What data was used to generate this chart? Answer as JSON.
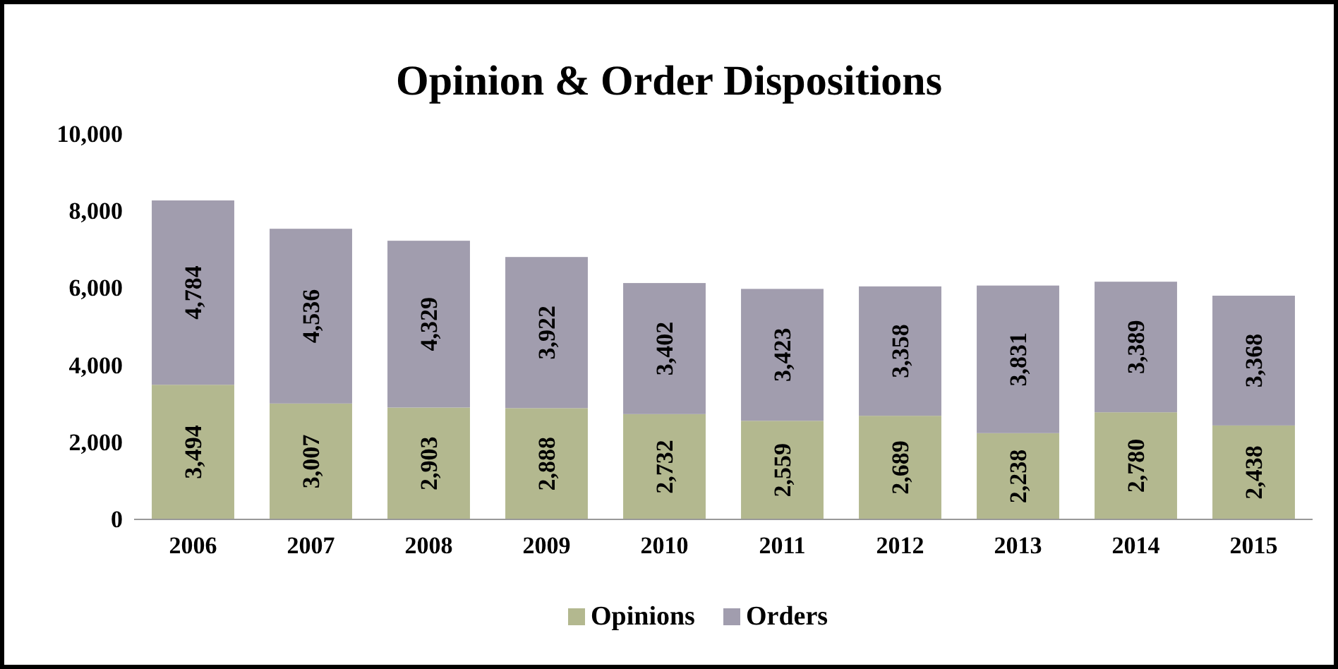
{
  "chart_data": {
    "type": "bar",
    "title": "Opinion & Order Dispositions",
    "categories": [
      "2006",
      "2007",
      "2008",
      "2009",
      "2010",
      "2011",
      "2012",
      "2013",
      "2014",
      "2015"
    ],
    "series": [
      {
        "name": "Opinions",
        "color": "#b3b88f",
        "values": [
          3494,
          3007,
          2903,
          2888,
          2732,
          2559,
          2689,
          2238,
          2780,
          2438
        ],
        "value_labels": [
          "3,494",
          "3,007",
          "2,903",
          "2,888",
          "2,732",
          "2,559",
          "2,689",
          "2,238",
          "2,780",
          "2,438"
        ]
      },
      {
        "name": "Orders",
        "color": "#a19dae",
        "values": [
          4784,
          4536,
          4329,
          3922,
          3402,
          3423,
          3358,
          3831,
          3389,
          3368
        ],
        "value_labels": [
          "4,784",
          "4,536",
          "4,329",
          "3,922",
          "3,402",
          "3,423",
          "3,358",
          "3,831",
          "3,389",
          "3,368"
        ]
      }
    ],
    "stacked": true,
    "ylim": [
      0,
      10000
    ],
    "yticks": [
      {
        "value": 0,
        "label": "0"
      },
      {
        "value": 2000,
        "label": "2,000"
      },
      {
        "value": 4000,
        "label": "4,000"
      },
      {
        "value": 6000,
        "label": "6,000"
      },
      {
        "value": 8000,
        "label": "8,000"
      },
      {
        "value": 10000,
        "label": "10,000"
      }
    ],
    "legend": "bottom"
  }
}
